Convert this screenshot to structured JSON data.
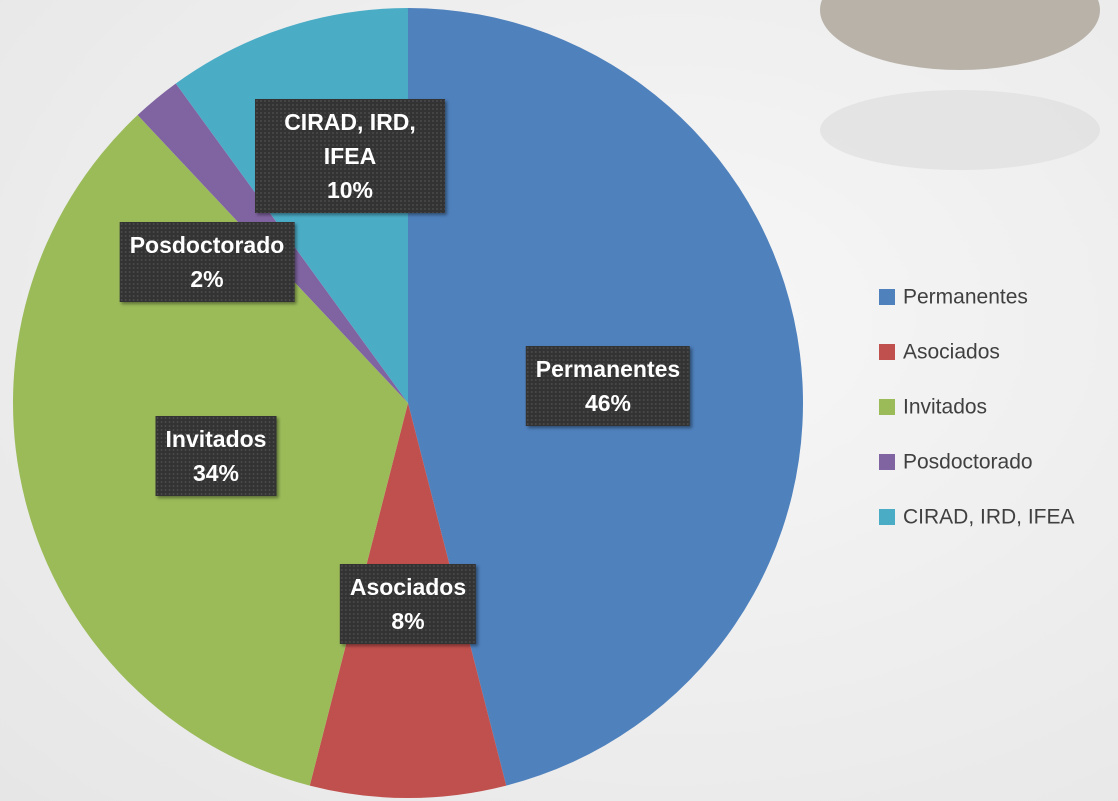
{
  "chart_data": {
    "type": "pie",
    "categories": [
      "Permanentes",
      "Asociados",
      "Invitados",
      "Posdoctorado",
      "CIRAD, IRD, IFEA"
    ],
    "values": [
      46,
      8,
      34,
      2,
      10
    ],
    "value_labels": [
      "46%",
      "8%",
      "34%",
      "2%",
      "10%"
    ],
    "colors": [
      "#4f81bd",
      "#c0504d",
      "#9bbb59",
      "#8064a2",
      "#4bacc6"
    ],
    "legend": "right"
  }
}
